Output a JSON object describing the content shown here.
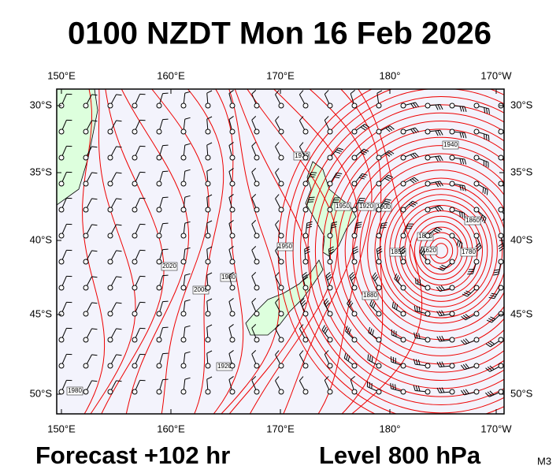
{
  "title": "0100 NZDT Mon 16 Feb 2026",
  "top_lon_labels": [
    "150°E",
    "160°E",
    "170°E",
    "180°",
    "170°W"
  ],
  "bottom_lon_labels": [
    "150°E",
    "160°E",
    "170°E",
    "180°",
    "170°W"
  ],
  "left_lat_labels": [
    "30°S",
    "35°S",
    "40°S",
    "45°S",
    "50°S"
  ],
  "right_lat_labels": [
    "30°S",
    "35°S",
    "40°S",
    "45°S",
    "50°S"
  ],
  "contour_labels": [
    "2020",
    "2000",
    "1980",
    "1950",
    "1920",
    "1930",
    "1950",
    "1920",
    "1900",
    "1880",
    "1940",
    "1860",
    "1800",
    "1620",
    "1780",
    "1850",
    "1980"
  ],
  "footer": {
    "forecast": "Forecast +102 hr",
    "level": "Level 800 hPa",
    "model": "M3"
  }
}
